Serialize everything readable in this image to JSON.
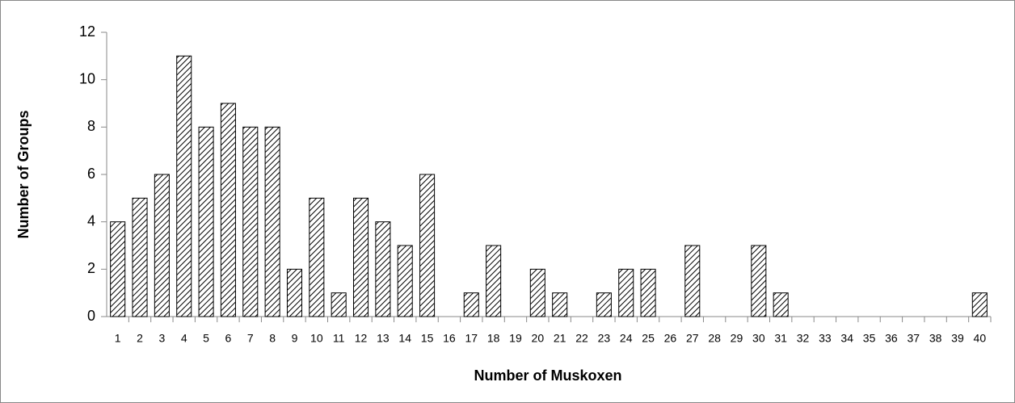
{
  "chart_data": {
    "type": "bar",
    "xlabel": "Number of Muskoxen",
    "ylabel": "Number of Groups",
    "categories": [
      "1",
      "2",
      "3",
      "4",
      "5",
      "6",
      "7",
      "8",
      "9",
      "10",
      "11",
      "12",
      "13",
      "14",
      "15",
      "16",
      "17",
      "18",
      "19",
      "20",
      "21",
      "22",
      "23",
      "24",
      "25",
      "26",
      "27",
      "28",
      "29",
      "30",
      "31",
      "32",
      "33",
      "34",
      "35",
      "36",
      "37",
      "38",
      "39",
      "40"
    ],
    "values": [
      4,
      5,
      6,
      11,
      8,
      9,
      8,
      8,
      2,
      5,
      1,
      5,
      4,
      3,
      6,
      0,
      1,
      3,
      0,
      2,
      1,
      0,
      1,
      2,
      2,
      0,
      3,
      0,
      0,
      3,
      1,
      0,
      0,
      0,
      0,
      0,
      0,
      0,
      0,
      1
    ],
    "color": "#000000",
    "ylim": [
      0,
      12
    ],
    "yticks": [
      0,
      2,
      4,
      6,
      8,
      10,
      12
    ],
    "grid": false
  }
}
